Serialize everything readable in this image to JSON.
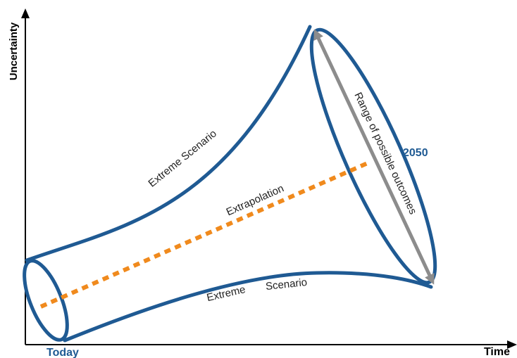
{
  "axes": {
    "y_label": "Uncertainty",
    "x_label": "Time",
    "x_start_label": "Today"
  },
  "labels": {
    "upper_scenario": "Extreme Scenario",
    "extrapolation": "Extrapolation",
    "lower_scenario_word1": "Extreme",
    "lower_scenario_word2": "Scenario",
    "range": "Range of possible outcomes",
    "year": "2050"
  },
  "colors": {
    "funnel": "#1f5a93",
    "extrapolation": "#f08a1d",
    "range_arrow": "#8c8c8c",
    "axis": "#000000",
    "text": "#222222"
  }
}
